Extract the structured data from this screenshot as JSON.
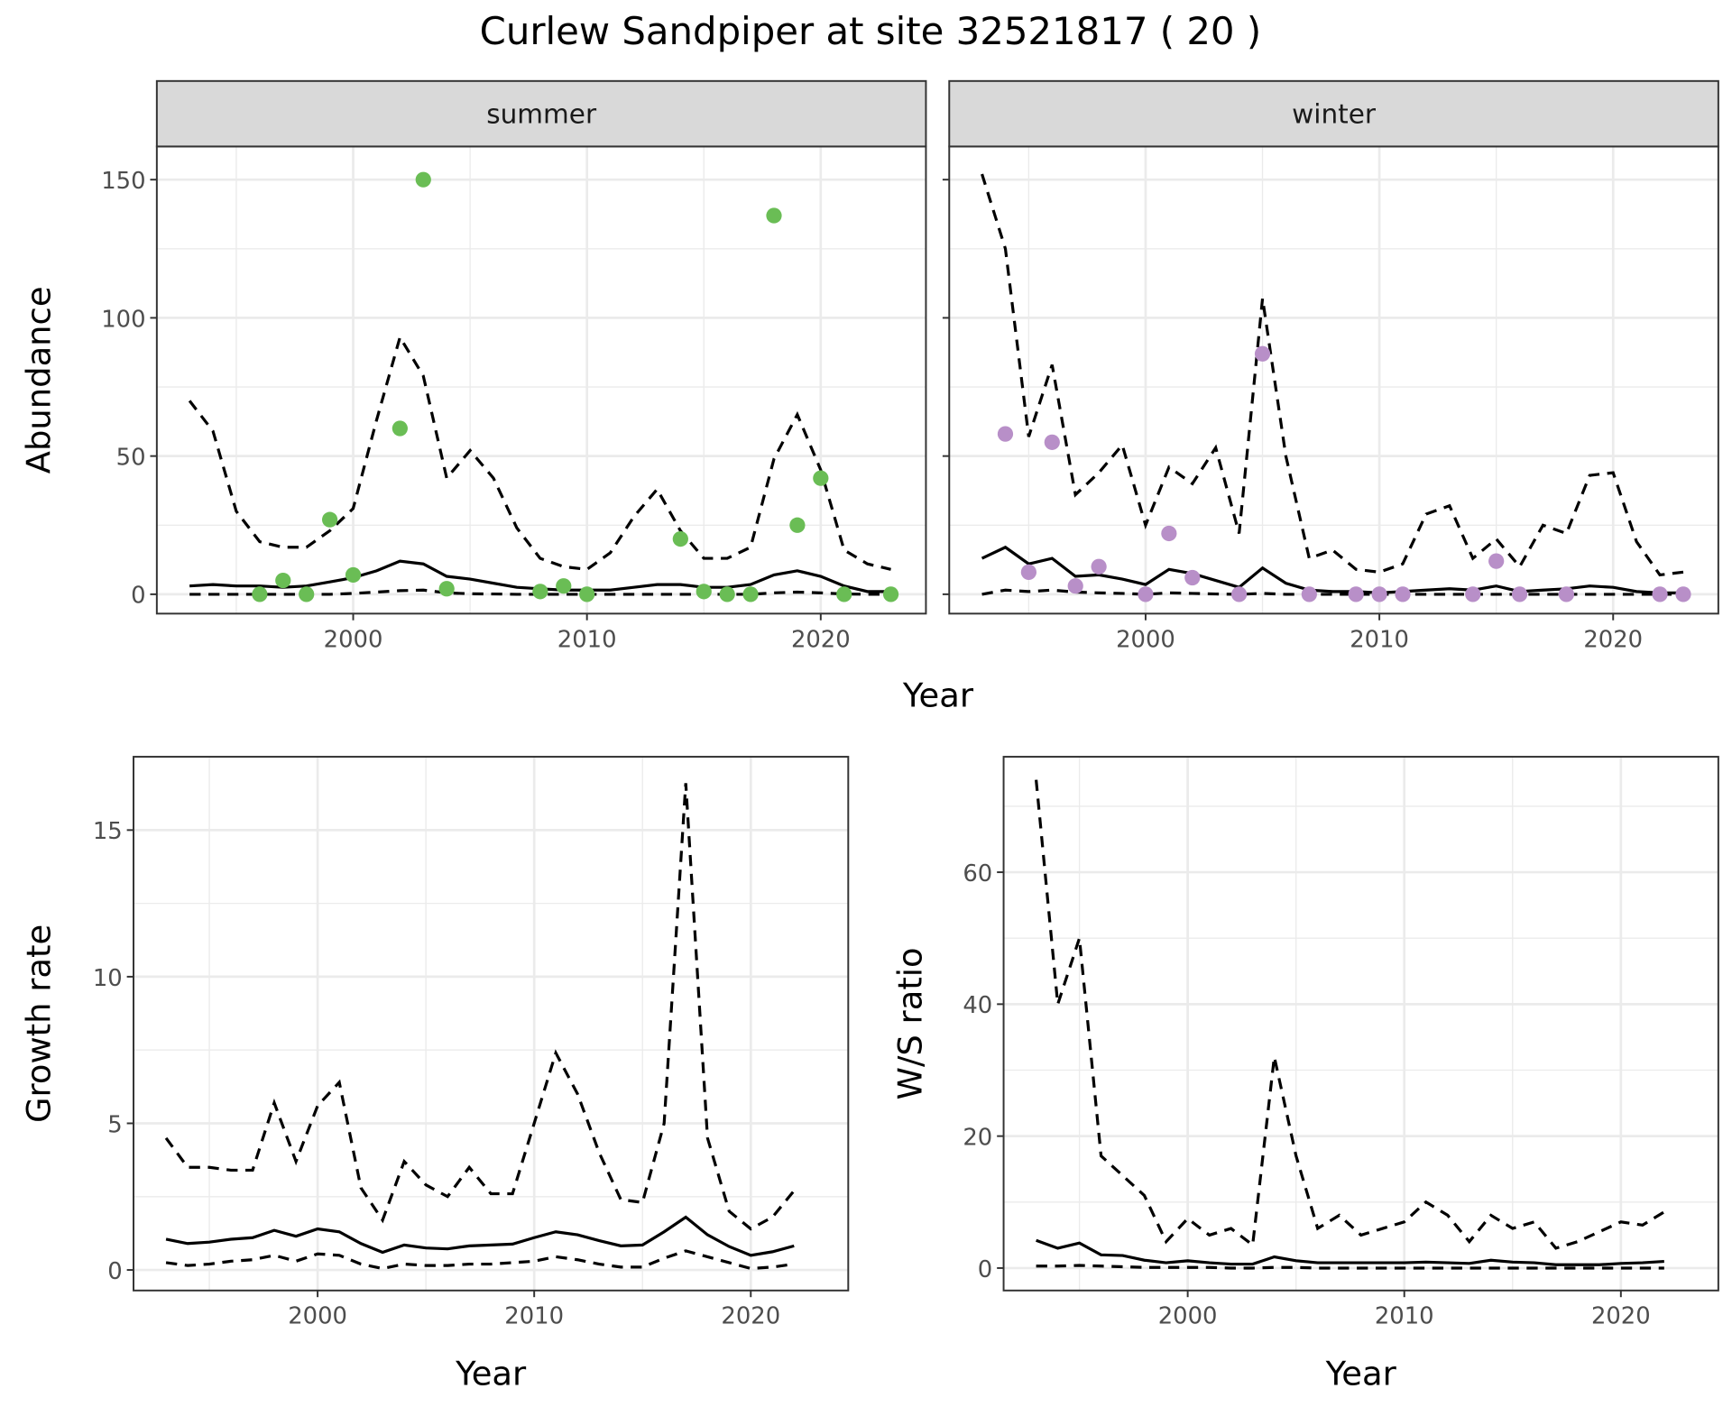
{
  "title": "Curlew Sandpiper at site 32521817 ( 20 )",
  "chart_data": [
    {
      "type": "line",
      "facet": "summer",
      "xlabel": "Year",
      "ylabel": "Abundance",
      "xlim": [
        1991.6,
        2024.5
      ],
      "ylim": [
        -7,
        162
      ],
      "xticks": [
        2000,
        2010,
        2020
      ],
      "yticks": [
        0,
        50,
        100,
        150
      ],
      "grid": true,
      "point_color": "#6abd55",
      "x": [
        1993,
        1994,
        1995,
        1996,
        1997,
        1998,
        1999,
        2000,
        2001,
        2002,
        2003,
        2004,
        2005,
        2006,
        2007,
        2008,
        2009,
        2010,
        2011,
        2012,
        2013,
        2014,
        2015,
        2016,
        2017,
        2018,
        2019,
        2020,
        2021,
        2022,
        2023
      ],
      "upper": [
        70,
        59,
        30,
        19,
        17,
        17,
        23,
        31,
        63,
        93,
        79,
        42,
        52,
        42,
        24,
        13,
        10,
        9,
        15,
        28,
        38,
        23,
        13,
        13,
        17,
        49,
        65,
        45,
        16,
        11,
        9
      ],
      "mean": [
        3,
        3.5,
        3,
        3,
        2.5,
        3,
        4.5,
        6,
        8.5,
        12,
        11,
        6.5,
        5.5,
        4,
        2.5,
        2,
        1.5,
        1.5,
        1.5,
        2.5,
        3.5,
        3.5,
        2.5,
        2.5,
        3.5,
        7,
        8.5,
        6.5,
        3,
        1,
        1
      ],
      "lower": [
        0,
        0,
        0,
        0,
        0,
        0,
        0,
        0.3,
        0.8,
        1.3,
        1.5,
        0.5,
        0.2,
        0.1,
        0,
        0,
        0,
        0,
        0,
        0,
        0,
        0,
        0,
        0,
        0,
        0.5,
        0.8,
        0.5,
        0.1,
        0,
        0
      ],
      "points": {
        "x": [
          1996,
          1997,
          1998,
          1999,
          2000,
          2002,
          2003,
          2004,
          2008,
          2009,
          2010,
          2014,
          2015,
          2016,
          2017,
          2018,
          2019,
          2020,
          2021,
          2023
        ],
        "y": [
          0,
          5,
          0,
          27,
          7,
          60,
          150,
          2,
          1,
          3,
          0,
          20,
          1,
          0,
          0,
          137,
          25,
          42,
          0,
          0
        ]
      }
    },
    {
      "type": "line",
      "facet": "winter",
      "xlabel": "Year",
      "ylabel": "Abundance",
      "xlim": [
        1991.6,
        2024.5
      ],
      "ylim": [
        -7,
        162
      ],
      "xticks": [
        2000,
        2010,
        2020
      ],
      "yticks": [
        0,
        50,
        100,
        150
      ],
      "grid": true,
      "point_color": "#b88fc8",
      "x": [
        1993,
        1994,
        1995,
        1996,
        1997,
        1998,
        1999,
        2000,
        2001,
        2002,
        2003,
        2004,
        2005,
        2006,
        2007,
        2008,
        2009,
        2010,
        2011,
        2012,
        2013,
        2014,
        2015,
        2016,
        2017,
        2018,
        2019,
        2020,
        2021,
        2022,
        2023
      ],
      "upper": [
        152,
        125,
        57,
        83,
        36,
        44,
        54,
        25,
        46,
        40,
        53,
        22,
        107,
        50,
        13,
        16,
        9,
        8,
        11,
        29,
        32,
        13,
        20,
        10,
        25,
        22,
        43,
        44,
        19,
        7,
        8
      ],
      "mean": [
        13,
        17,
        11,
        13,
        6.5,
        7,
        5.5,
        3.5,
        9,
        7.5,
        5,
        2.5,
        9.5,
        4,
        1.5,
        1,
        1,
        0.5,
        1,
        1.5,
        2,
        1.5,
        3,
        1,
        1.5,
        2,
        3,
        2.5,
        1,
        0.5,
        0.5
      ],
      "lower": [
        0,
        1.5,
        1,
        1.5,
        0.8,
        0.5,
        0.3,
        0,
        0.5,
        0.3,
        0.1,
        0,
        0.3,
        0,
        0,
        0,
        0,
        0,
        0,
        0,
        0,
        0,
        0,
        0,
        0,
        0,
        0,
        0,
        0,
        0,
        0
      ],
      "points": {
        "x": [
          1994,
          1995,
          1996,
          1997,
          1998,
          2000,
          2001,
          2002,
          2004,
          2005,
          2007,
          2009,
          2010,
          2011,
          2014,
          2015,
          2016,
          2018,
          2022,
          2023
        ],
        "y": [
          58,
          8,
          55,
          3,
          10,
          0,
          22,
          6,
          0,
          87,
          0,
          0,
          0,
          0,
          0,
          12,
          0,
          0,
          0,
          0
        ]
      }
    },
    {
      "type": "line",
      "xlabel": "Year",
      "ylabel": "Growth rate",
      "xlim": [
        1991.5,
        2024.5
      ],
      "ylim": [
        -0.7,
        17.5
      ],
      "xticks": [
        2000,
        2010,
        2020
      ],
      "yticks": [
        0,
        5,
        10,
        15
      ],
      "grid": true,
      "x": [
        1993,
        1994,
        1995,
        1996,
        1997,
        1998,
        1999,
        2000,
        2001,
        2002,
        2003,
        2004,
        2005,
        2006,
        2007,
        2008,
        2009,
        2010,
        2011,
        2012,
        2013,
        2014,
        2015,
        2016,
        2017,
        2018,
        2019,
        2020,
        2021,
        2022
      ],
      "upper": [
        4.5,
        3.5,
        3.5,
        3.4,
        3.4,
        5.7,
        3.7,
        5.6,
        6.4,
        2.8,
        1.7,
        3.7,
        2.9,
        2.5,
        3.5,
        2.6,
        2.6,
        5.0,
        7.4,
        6.0,
        4.0,
        2.4,
        2.3,
        5.0,
        16.6,
        4.5,
        2.0,
        1.4,
        1.8,
        2.7
      ],
      "mean": [
        1.05,
        0.9,
        0.95,
        1.05,
        1.1,
        1.35,
        1.15,
        1.4,
        1.3,
        0.9,
        0.6,
        0.85,
        0.75,
        0.72,
        0.82,
        0.85,
        0.88,
        1.1,
        1.3,
        1.2,
        1.0,
        0.82,
        0.85,
        1.3,
        1.8,
        1.2,
        0.8,
        0.5,
        0.62,
        0.82
      ],
      "lower": [
        0.25,
        0.15,
        0.2,
        0.3,
        0.35,
        0.5,
        0.3,
        0.55,
        0.5,
        0.2,
        0.05,
        0.2,
        0.15,
        0.15,
        0.2,
        0.2,
        0.25,
        0.3,
        0.45,
        0.35,
        0.2,
        0.1,
        0.1,
        0.4,
        0.65,
        0.45,
        0.25,
        0.05,
        0.1,
        0.2
      ]
    },
    {
      "type": "line",
      "xlabel": "Year",
      "ylabel": "W/S ratio",
      "xlim": [
        1991.5,
        2024.5
      ],
      "ylim": [
        -3.4,
        77.5
      ],
      "xticks": [
        2000,
        2010,
        2020
      ],
      "yticks": [
        0,
        20,
        40,
        60
      ],
      "grid": true,
      "x": [
        1993,
        1994,
        1995,
        1996,
        1997,
        1998,
        1999,
        2000,
        2001,
        2002,
        2003,
        2004,
        2005,
        2006,
        2007,
        2008,
        2009,
        2010,
        2011,
        2012,
        2013,
        2014,
        2015,
        2016,
        2017,
        2018,
        2019,
        2020,
        2021,
        2022
      ],
      "upper": [
        74,
        40,
        50,
        17,
        14,
        11,
        4,
        7.5,
        5,
        6,
        3.5,
        32,
        17,
        6,
        8,
        5,
        6,
        7,
        10,
        8,
        4,
        8,
        6,
        7,
        3,
        4,
        5.5,
        7,
        6.5,
        8.5
      ],
      "mean": [
        4.2,
        3,
        3.8,
        2,
        1.9,
        1.2,
        0.8,
        1.1,
        0.8,
        0.6,
        0.6,
        1.7,
        1.1,
        0.8,
        0.8,
        0.8,
        0.8,
        0.8,
        0.9,
        0.8,
        0.7,
        1.2,
        0.9,
        0.8,
        0.5,
        0.5,
        0.5,
        0.7,
        0.8,
        1.0
      ],
      "lower": [
        0.3,
        0.3,
        0.4,
        0.3,
        0.2,
        0.1,
        0.1,
        0.1,
        0.1,
        0,
        0,
        0.1,
        0.1,
        0,
        0,
        0,
        0,
        0,
        0,
        0,
        0,
        0,
        0,
        0,
        0,
        0,
        0,
        0,
        0,
        0
      ]
    }
  ]
}
